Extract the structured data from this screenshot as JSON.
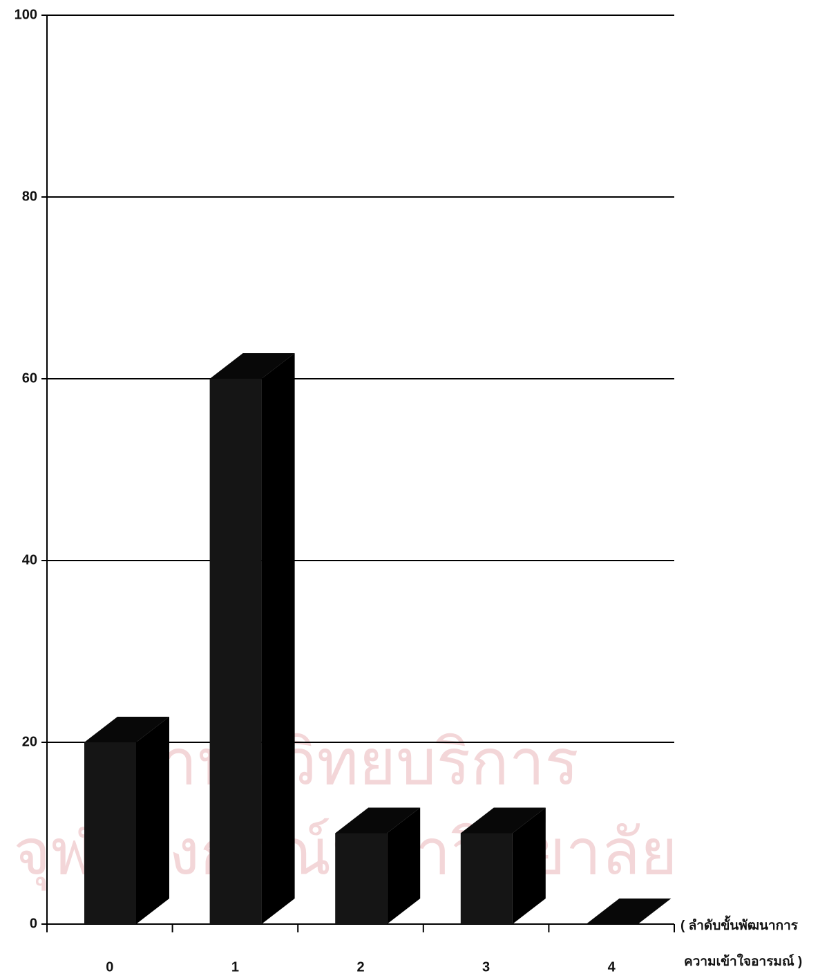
{
  "chart_data": {
    "type": "bar3d",
    "categories": [
      "0",
      "1",
      "2",
      "3",
      "4"
    ],
    "values": [
      20,
      60,
      10,
      10,
      0
    ],
    "color": "#151515",
    "ylim": [
      0,
      100
    ],
    "yticks": [
      0,
      20,
      40,
      60,
      80,
      100
    ],
    "grid": true,
    "xlabel_lines": [
      "( ลำดับขั้นพัฒนาการ",
      "ความเข้าใจอารมณ์ )"
    ],
    "watermark": [
      "สถาบันวิทยบริการ",
      "จุฬาลงกรณ์มหาวิทยาลัย"
    ]
  }
}
